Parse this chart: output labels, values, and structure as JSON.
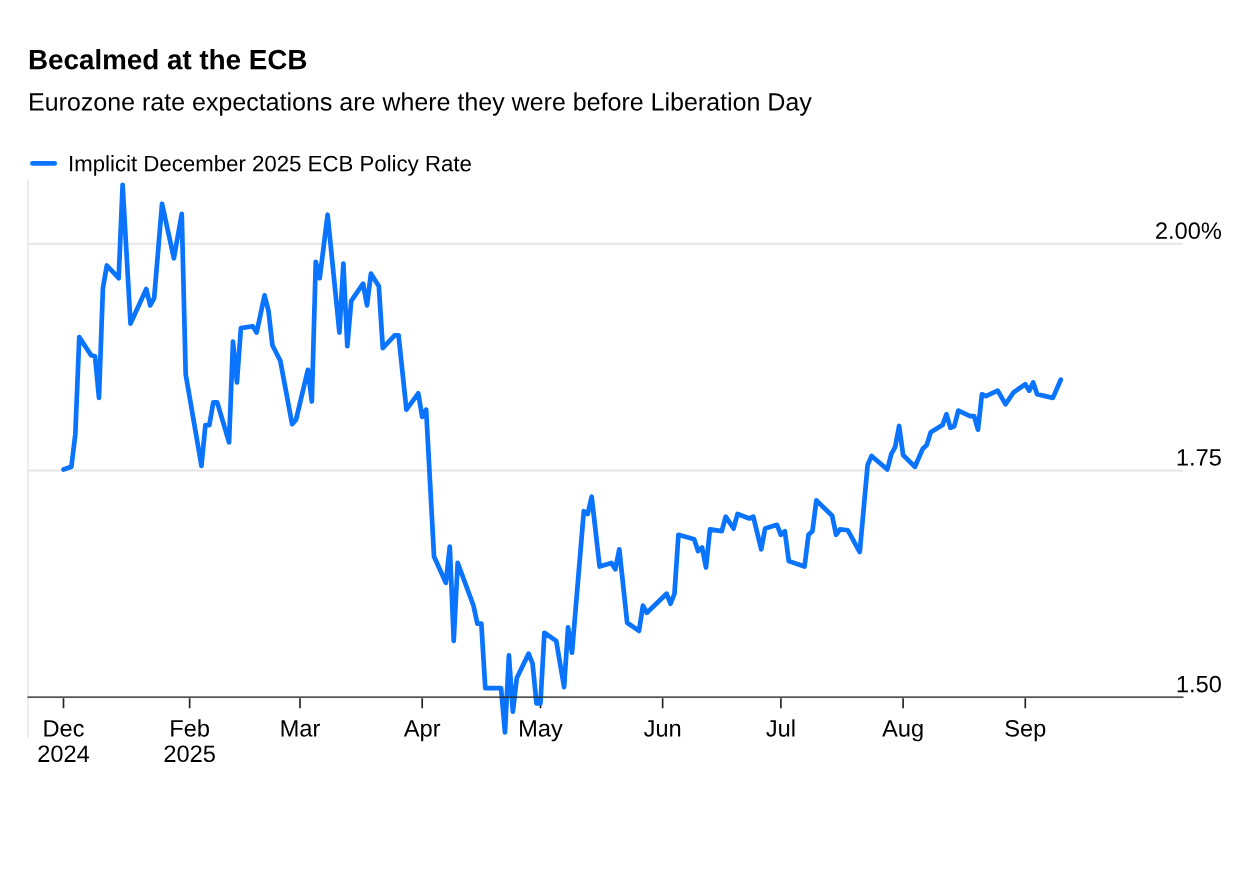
{
  "chart_data": {
    "type": "line",
    "title": "Becalmed at the ECB",
    "subtitle": "Eurozone rate expectations are where they were before Liberation Day",
    "x": [
      "2024-12-31",
      "2025-01-02",
      "2025-01-03",
      "2025-01-04",
      "2025-01-07",
      "2025-01-08",
      "2025-01-09",
      "2025-01-10",
      "2025-01-11",
      "2025-01-14",
      "2025-01-15",
      "2025-01-17",
      "2025-01-21",
      "2025-01-22",
      "2025-01-23",
      "2025-01-25",
      "2025-01-28",
      "2025-01-30",
      "2025-01-31",
      "2025-02-04",
      "2025-02-05",
      "2025-02-06",
      "2025-02-07",
      "2025-02-08",
      "2025-02-11",
      "2025-02-12",
      "2025-02-13",
      "2025-02-14",
      "2025-02-17",
      "2025-02-18",
      "2025-02-20",
      "2025-02-21",
      "2025-02-22",
      "2025-02-24",
      "2025-02-27",
      "2025-02-28",
      "2025-03-03",
      "2025-03-04",
      "2025-03-05",
      "2025-03-06",
      "2025-03-08",
      "2025-03-11",
      "2025-03-12",
      "2025-03-13",
      "2025-03-14",
      "2025-03-17",
      "2025-03-18",
      "2025-03-19",
      "2025-03-21",
      "2025-03-22",
      "2025-03-25",
      "2025-03-26",
      "2025-03-28",
      "2025-03-31",
      "2025-04-01",
      "2025-04-02",
      "2025-04-04",
      "2025-04-07",
      "2025-04-08",
      "2025-04-09",
      "2025-04-10",
      "2025-04-14",
      "2025-04-15",
      "2025-04-16",
      "2025-04-17",
      "2025-04-21",
      "2025-04-22",
      "2025-04-23",
      "2025-04-24",
      "2025-04-25",
      "2025-04-28",
      "2025-04-29",
      "2025-04-30",
      "2025-05-01",
      "2025-05-02",
      "2025-05-05",
      "2025-05-07",
      "2025-05-08",
      "2025-05-09",
      "2025-05-12",
      "2025-05-13",
      "2025-05-14",
      "2025-05-16",
      "2025-05-19",
      "2025-05-20",
      "2025-05-21",
      "2025-05-23",
      "2025-05-26",
      "2025-05-27",
      "2025-05-28",
      "2025-06-02",
      "2025-06-03",
      "2025-06-04",
      "2025-06-05",
      "2025-06-09",
      "2025-06-10",
      "2025-06-11",
      "2025-06-12",
      "2025-06-13",
      "2025-06-16",
      "2025-06-17",
      "2025-06-19",
      "2025-06-20",
      "2025-06-23",
      "2025-06-24",
      "2025-06-26",
      "2025-06-27",
      "2025-06-30",
      "2025-07-01",
      "2025-07-02",
      "2025-07-03",
      "2025-07-07",
      "2025-07-08",
      "2025-07-09",
      "2025-07-10",
      "2025-07-14",
      "2025-07-15",
      "2025-07-16",
      "2025-07-18",
      "2025-07-21",
      "2025-07-23",
      "2025-07-24",
      "2025-07-28",
      "2025-07-29",
      "2025-07-30",
      "2025-07-31",
      "2025-08-01",
      "2025-08-04",
      "2025-08-06",
      "2025-08-07",
      "2025-08-08",
      "2025-08-11",
      "2025-08-12",
      "2025-08-13",
      "2025-08-14",
      "2025-08-15",
      "2025-08-18",
      "2025-08-19",
      "2025-08-20",
      "2025-08-21",
      "2025-08-22",
      "2025-08-25",
      "2025-08-27",
      "2025-08-29",
      "2025-09-01",
      "2025-09-02",
      "2025-09-03",
      "2025-09-04",
      "2025-09-08",
      "2025-09-10"
    ],
    "series": [
      {
        "name": "Implicit December 2025 ECB Policy Rate",
        "color": "#0a74ff",
        "values": [
          1.751,
          1.754,
          1.79,
          1.897,
          1.877,
          1.876,
          1.83,
          1.951,
          1.976,
          1.962,
          2.065,
          1.912,
          1.95,
          1.932,
          1.94,
          2.044,
          1.984,
          2.033,
          1.856,
          1.755,
          1.8,
          1.8,
          1.825,
          1.825,
          1.781,
          1.892,
          1.847,
          1.907,
          1.909,
          1.902,
          1.943,
          1.926,
          1.888,
          1.871,
          1.801,
          1.806,
          1.861,
          1.826,
          1.98,
          1.962,
          2.032,
          1.902,
          1.978,
          1.887,
          1.937,
          1.956,
          1.932,
          1.967,
          1.953,
          1.885,
          1.899,
          1.899,
          1.817,
          1.835,
          1.809,
          1.817,
          1.655,
          1.626,
          1.666,
          1.562,
          1.648,
          1.601,
          1.581,
          1.581,
          1.51,
          1.51,
          1.461,
          1.546,
          1.484,
          1.521,
          1.548,
          1.537,
          1.493,
          1.493,
          1.571,
          1.562,
          1.511,
          1.577,
          1.549,
          1.705,
          1.702,
          1.721,
          1.644,
          1.648,
          1.641,
          1.663,
          1.582,
          1.573,
          1.601,
          1.593,
          1.614,
          1.603,
          1.614,
          1.679,
          1.674,
          1.661,
          1.665,
          1.643,
          1.685,
          1.683,
          1.699,
          1.686,
          1.702,
          1.697,
          1.699,
          1.663,
          1.686,
          1.69,
          1.679,
          1.683,
          1.65,
          1.644,
          1.679,
          1.683,
          1.717,
          1.7,
          1.679,
          1.685,
          1.684,
          1.66,
          1.756,
          1.766,
          1.751,
          1.768,
          1.776,
          1.799,
          1.767,
          1.754,
          1.774,
          1.778,
          1.792,
          1.8,
          1.812,
          1.797,
          1.799,
          1.816,
          1.81,
          1.81,
          1.795,
          1.834,
          1.832,
          1.838,
          1.823,
          1.836,
          1.845,
          1.838,
          1.847,
          1.834,
          1.83,
          1.85
        ]
      }
    ],
    "xlim": [
      "2024-12-22",
      "2025-10-11"
    ],
    "xticks": [
      {
        "value": "2024-12-31",
        "label": "Dec\n2024"
      },
      {
        "value": "2025-02-01",
        "label": "Feb\n2025"
      },
      {
        "value": "2025-03-01",
        "label": "Mar"
      },
      {
        "value": "2025-04-01",
        "label": "Apr"
      },
      {
        "value": "2025-05-01",
        "label": "May"
      },
      {
        "value": "2025-06-01",
        "label": "Jun"
      },
      {
        "value": "2025-07-01",
        "label": "Jul"
      },
      {
        "value": "2025-08-01",
        "label": "Aug"
      },
      {
        "value": "2025-09-01",
        "label": "Sep"
      }
    ],
    "ylim": [
      1.455,
      2.07
    ],
    "yticks": [
      {
        "value": 1.5,
        "label": "1.50"
      },
      1.75,
      {
        "value": 2.0,
        "label": "2.00%"
      }
    ],
    "grid": "y",
    "legend": "top left",
    "marker": "none",
    "line_style": "solid"
  }
}
